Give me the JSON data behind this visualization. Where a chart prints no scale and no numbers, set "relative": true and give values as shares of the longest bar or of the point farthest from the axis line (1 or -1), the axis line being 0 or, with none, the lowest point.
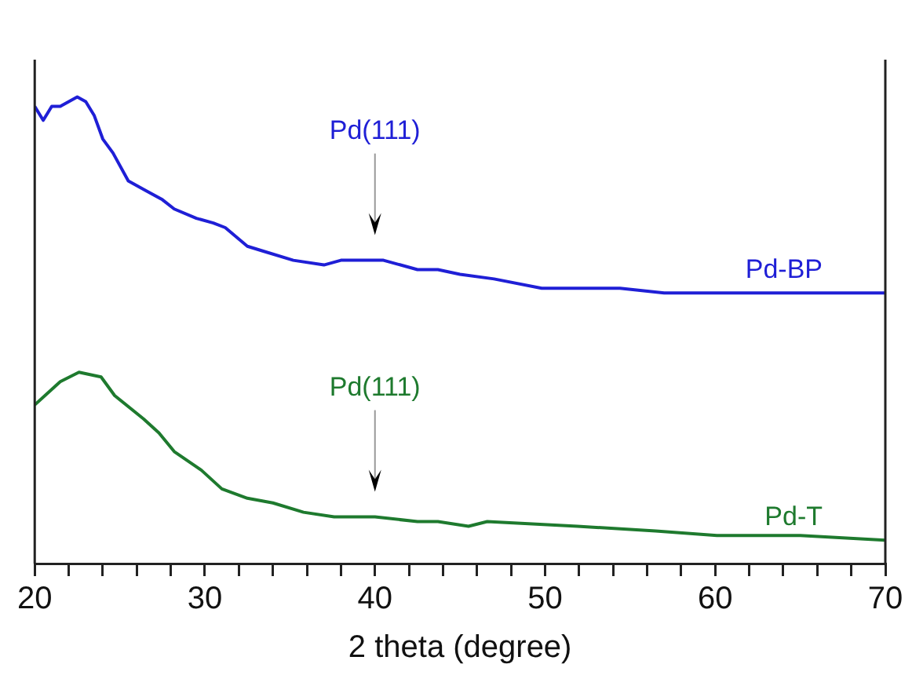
{
  "chart_data": {
    "type": "line",
    "xlabel": "2 theta (degree)",
    "relative": true,
    "xlim": [
      20,
      70
    ],
    "xticks": [
      20,
      {
        "value": 22,
        "label": null
      },
      {
        "value": 24,
        "label": null
      },
      {
        "value": 26,
        "label": null
      },
      {
        "value": 28,
        "label": null
      },
      30,
      {
        "value": 32,
        "label": null
      },
      {
        "value": 34,
        "label": null
      },
      {
        "value": 36,
        "label": null
      },
      {
        "value": 38,
        "label": null
      },
      40,
      {
        "value": 42,
        "label": null
      },
      {
        "value": 44,
        "label": null
      },
      {
        "value": 46,
        "label": null
      },
      {
        "value": 48,
        "label": null
      },
      50,
      {
        "value": 52,
        "label": null
      },
      {
        "value": 54,
        "label": null
      },
      {
        "value": 56,
        "label": null
      },
      {
        "value": 58,
        "label": null
      },
      60,
      {
        "value": 62,
        "label": null
      },
      {
        "value": 64,
        "label": null
      },
      {
        "value": 66,
        "label": null
      },
      {
        "value": 68,
        "label": null
      },
      70
    ],
    "series": [
      {
        "name": "Pd-BP",
        "color": "#1f1fd6",
        "x": [
          20,
          20.5,
          21,
          21.5,
          22,
          22.5,
          23,
          23.5,
          24,
          24.6,
          25.5,
          26.5,
          27.5,
          28.2,
          29.5,
          30.5,
          31.2,
          32.5,
          33.4,
          35.2,
          37,
          38,
          39.4,
          40.5,
          42.5,
          43.7,
          45,
          47,
          49.8,
          52,
          54.4,
          57,
          59.9,
          63,
          66,
          70
        ],
        "values": [
          0.98,
          0.95,
          0.98,
          0.98,
          0.99,
          1.0,
          0.99,
          0.96,
          0.91,
          0.88,
          0.82,
          0.8,
          0.78,
          0.76,
          0.74,
          0.73,
          0.72,
          0.68,
          0.67,
          0.65,
          0.64,
          0.65,
          0.65,
          0.65,
          0.63,
          0.63,
          0.62,
          0.61,
          0.59,
          0.59,
          0.59,
          0.58,
          0.58,
          0.58,
          0.58,
          0.58
        ]
      },
      {
        "name": "Pd-T",
        "color": "#1e7a2e",
        "x": [
          20,
          21.5,
          22.6,
          23.9,
          24.7,
          26.4,
          27.3,
          28.2,
          29.8,
          31,
          32.5,
          34,
          35.8,
          37.6,
          40,
          42.5,
          43.7,
          45.5,
          46.6,
          51.9,
          56.5,
          60.1,
          65,
          70
        ],
        "values": [
          0.34,
          0.39,
          0.41,
          0.4,
          0.36,
          0.31,
          0.28,
          0.24,
          0.2,
          0.16,
          0.14,
          0.13,
          0.11,
          0.1,
          0.1,
          0.09,
          0.09,
          0.08,
          0.09,
          0.08,
          0.07,
          0.06,
          0.06,
          0.05
        ]
      }
    ],
    "annotations": [
      "Pd(111)",
      "Pd(111)"
    ],
    "legend": false,
    "grid": false,
    "tick_labels": "x",
    "marker": "none",
    "line_style": "solid"
  }
}
